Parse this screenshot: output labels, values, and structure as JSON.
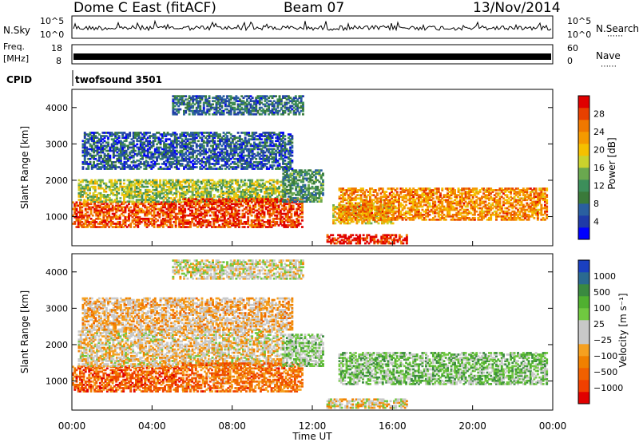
{
  "header": {
    "title": "Dome C East (fitACF)",
    "beam": "Beam 07",
    "date": "13/Nov/2014"
  },
  "sky_panel": {
    "left_label": "N.Sky",
    "right_label": "N.Search",
    "tick_top": "10^5",
    "tick_bottom": "10^0"
  },
  "freq_panel": {
    "left_label": "Freq.",
    "unit_label": "[MHz]",
    "right_label": "Nave",
    "left_ticks": [
      "18",
      "8"
    ],
    "right_ticks": [
      "60",
      "0"
    ]
  },
  "cpid_panel": {
    "label": "CPID",
    "value": "twofsound 3501"
  },
  "time_axis": {
    "label": "Time UT",
    "ticks": [
      "00:00",
      "04:00",
      "08:00",
      "12:00",
      "16:00",
      "20:00",
      "00:00"
    ]
  },
  "chart_data": [
    {
      "type": "heatmap",
      "name": "power",
      "xlabel": "Time UT",
      "ylabel": "Slant Range [km]",
      "x_range_hours": [
        0,
        24
      ],
      "y_range_km": [
        200,
        4500
      ],
      "y_ticks": [
        1000,
        2000,
        3000,
        4000
      ],
      "colorbar_label": "Power [dB]",
      "colorbar_ticks": [
        "28",
        "24",
        "20",
        "16",
        "12",
        "8",
        "4"
      ],
      "colorbar_colors": [
        "#0000ff",
        "#1f3aa8",
        "#2a5fa0",
        "#3a7a3a",
        "#3c8e5a",
        "#6aa84f",
        "#c9d22d",
        "#f5c000",
        "#f59a00",
        "#f07800",
        "#e84000",
        "#e00000"
      ],
      "regions": [
        {
          "t0": 0.0,
          "t1": 5.5,
          "r0": 700,
          "r1": 1400,
          "level": 0.85
        },
        {
          "t0": 0.3,
          "t1": 10.5,
          "r0": 1400,
          "r1": 2000,
          "level": 0.5
        },
        {
          "t0": 5.5,
          "t1": 11.5,
          "r0": 700,
          "r1": 1500,
          "level": 0.9
        },
        {
          "t0": 10.5,
          "t1": 12.5,
          "r0": 1400,
          "r1": 2300,
          "level": 0.35
        },
        {
          "t0": 12.7,
          "t1": 16.7,
          "r0": 250,
          "r1": 500,
          "level": 0.95
        },
        {
          "t0": 13.0,
          "t1": 16.0,
          "r0": 800,
          "r1": 1300,
          "level": 0.6
        },
        {
          "t0": 13.3,
          "t1": 23.7,
          "r0": 900,
          "r1": 1800,
          "level": 0.75
        },
        {
          "t0": 0.5,
          "t1": 11.0,
          "r0": 2300,
          "r1": 3300,
          "level": 0.2
        },
        {
          "t0": 5.0,
          "t1": 11.5,
          "r0": 3800,
          "r1": 4300,
          "level": 0.25
        }
      ]
    },
    {
      "type": "heatmap",
      "name": "velocity",
      "xlabel": "Time UT",
      "ylabel": "Slant Range [km]",
      "x_range_hours": [
        0,
        24
      ],
      "y_range_km": [
        200,
        4500
      ],
      "y_ticks": [
        1000,
        2000,
        3000,
        4000
      ],
      "colorbar_label": "Velocity [m s⁻¹]",
      "colorbar_ticks": [
        "1000",
        "500",
        "100",
        "25",
        "−25",
        "−100",
        "−500",
        "−1000"
      ],
      "colorbar_colors": [
        "#e00000",
        "#f04000",
        "#f06000",
        "#f08000",
        "#f5a020",
        "#c8c8c8",
        "#c8c8c8",
        "#70c840",
        "#50b030",
        "#3a8a40",
        "#2a6a90",
        "#1a40c0"
      ],
      "regions": [
        {
          "t0": 0.0,
          "t1": 5.5,
          "r0": 700,
          "r1": 1400,
          "level": 0.2
        },
        {
          "t0": 0.3,
          "t1": 10.5,
          "r0": 1400,
          "r1": 2400,
          "level": 0.45
        },
        {
          "t0": 5.5,
          "t1": 11.5,
          "r0": 700,
          "r1": 1500,
          "level": 0.25
        },
        {
          "t0": 10.5,
          "t1": 12.5,
          "r0": 1400,
          "r1": 2300,
          "level": 0.6
        },
        {
          "t0": 12.7,
          "t1": 16.7,
          "r0": 250,
          "r1": 500,
          "level": 0.45
        },
        {
          "t0": 13.3,
          "t1": 23.7,
          "r0": 900,
          "r1": 1800,
          "level": 0.65
        },
        {
          "t0": 0.5,
          "t1": 11.0,
          "r0": 2400,
          "r1": 3300,
          "level": 0.4
        },
        {
          "t0": 5.0,
          "t1": 11.5,
          "r0": 3800,
          "r1": 4300,
          "level": 0.5
        }
      ]
    }
  ]
}
